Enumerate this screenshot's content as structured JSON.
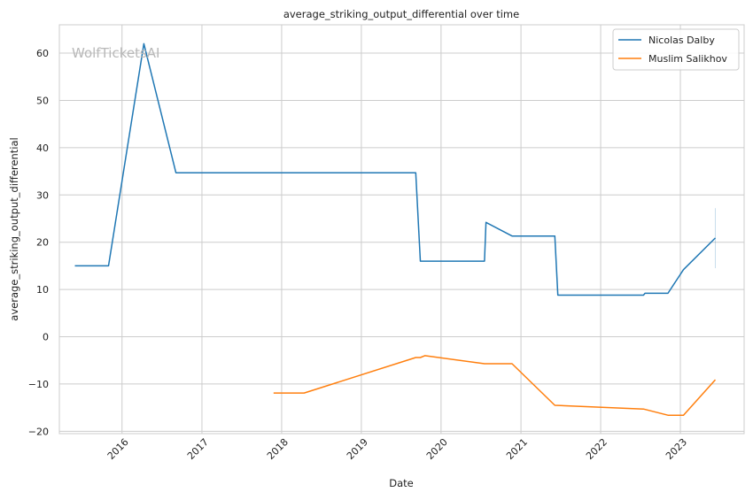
{
  "chart_data": {
    "type": "line",
    "title": "average_striking_output_differential over time",
    "xlabel": "Date",
    "ylabel": "average_striking_output_differential",
    "watermark": "WolfTicketsAI",
    "x_ticks": [
      "2016",
      "2017",
      "2018",
      "2019",
      "2020",
      "2021",
      "2022",
      "2023"
    ],
    "y_ticks": [
      -20,
      -10,
      0,
      10,
      20,
      30,
      40,
      50,
      60
    ],
    "xlim": [
      "2015-03-20",
      "2023-10-20"
    ],
    "ylim": [
      -20.5,
      66
    ],
    "grid": true,
    "legend_position": "top-right",
    "series": [
      {
        "name": "Nicolas Dalby",
        "color": "#1f77b4",
        "points": [
          [
            "2015-05-30",
            15.0
          ],
          [
            "2015-10-31",
            15.0
          ],
          [
            "2016-04-10",
            62.0
          ],
          [
            "2016-09-04",
            34.7
          ],
          [
            "2019-09-07",
            34.7
          ],
          [
            "2019-09-28",
            16.0
          ],
          [
            "2020-07-18",
            16.0
          ],
          [
            "2020-07-25",
            24.2
          ],
          [
            "2020-11-21",
            21.3
          ],
          [
            "2021-06-05",
            21.3
          ],
          [
            "2021-06-19",
            8.8
          ],
          [
            "2022-07-16",
            8.8
          ],
          [
            "2022-07-23",
            9.2
          ],
          [
            "2022-11-05",
            9.2
          ],
          [
            "2023-01-15",
            14.2
          ],
          [
            "2023-06-10",
            20.9
          ]
        ],
        "error_band": {
          "date": "2023-06-10",
          "low": 14.5,
          "high": 27.2
        }
      },
      {
        "name": "Muslim Salikhov",
        "color": "#ff7f0e",
        "points": [
          [
            "2017-11-25",
            -11.9
          ],
          [
            "2018-04-14",
            -11.9
          ],
          [
            "2019-09-07",
            -4.4
          ],
          [
            "2019-09-28",
            -4.4
          ],
          [
            "2019-10-19",
            -4.0
          ],
          [
            "2020-07-18",
            -5.7
          ],
          [
            "2020-11-21",
            -5.7
          ],
          [
            "2021-06-05",
            -14.5
          ],
          [
            "2022-07-16",
            -15.3
          ],
          [
            "2022-11-05",
            -16.6
          ],
          [
            "2023-01-15",
            -16.6
          ],
          [
            "2023-06-10",
            -9.1
          ]
        ]
      }
    ]
  }
}
